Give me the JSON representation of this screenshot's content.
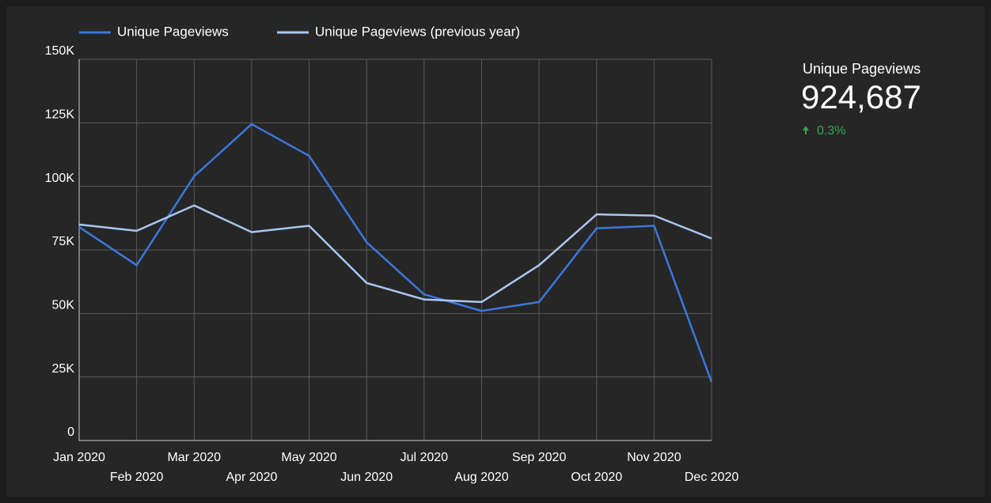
{
  "chart_data": {
    "type": "line",
    "categories": [
      "Jan 2020",
      "Feb 2020",
      "Mar 2020",
      "Apr 2020",
      "May 2020",
      "Jun 2020",
      "Jul 2020",
      "Aug 2020",
      "Sep 2020",
      "Oct 2020",
      "Nov 2020",
      "Dec 2020"
    ],
    "series": [
      {
        "name": "Unique Pageviews",
        "color": "#3b78dc",
        "values": [
          84000,
          69000,
          104000,
          124500,
          112000,
          78000,
          57500,
          51000,
          54500,
          83500,
          84500,
          23000
        ]
      },
      {
        "name": "Unique Pageviews (previous year)",
        "color": "#a9c7f2",
        "values": [
          85000,
          82500,
          92500,
          82000,
          84500,
          62000,
          55500,
          54500,
          69000,
          89000,
          88500,
          79500
        ]
      }
    ],
    "ylim": [
      0,
      150000
    ],
    "yticks": [
      0,
      {
        "value": 25000,
        "label": "25K"
      },
      {
        "value": 50000,
        "label": "50K"
      },
      {
        "value": 75000,
        "label": "75K"
      },
      {
        "value": 100000,
        "label": "100K"
      },
      {
        "value": 125000,
        "label": "125K"
      },
      {
        "value": 150000,
        "label": "150K"
      }
    ],
    "grid": true,
    "legend": "top"
  },
  "scorecard": {
    "label": "Unique Pageviews",
    "value": "924,687",
    "change": "0.3%"
  }
}
